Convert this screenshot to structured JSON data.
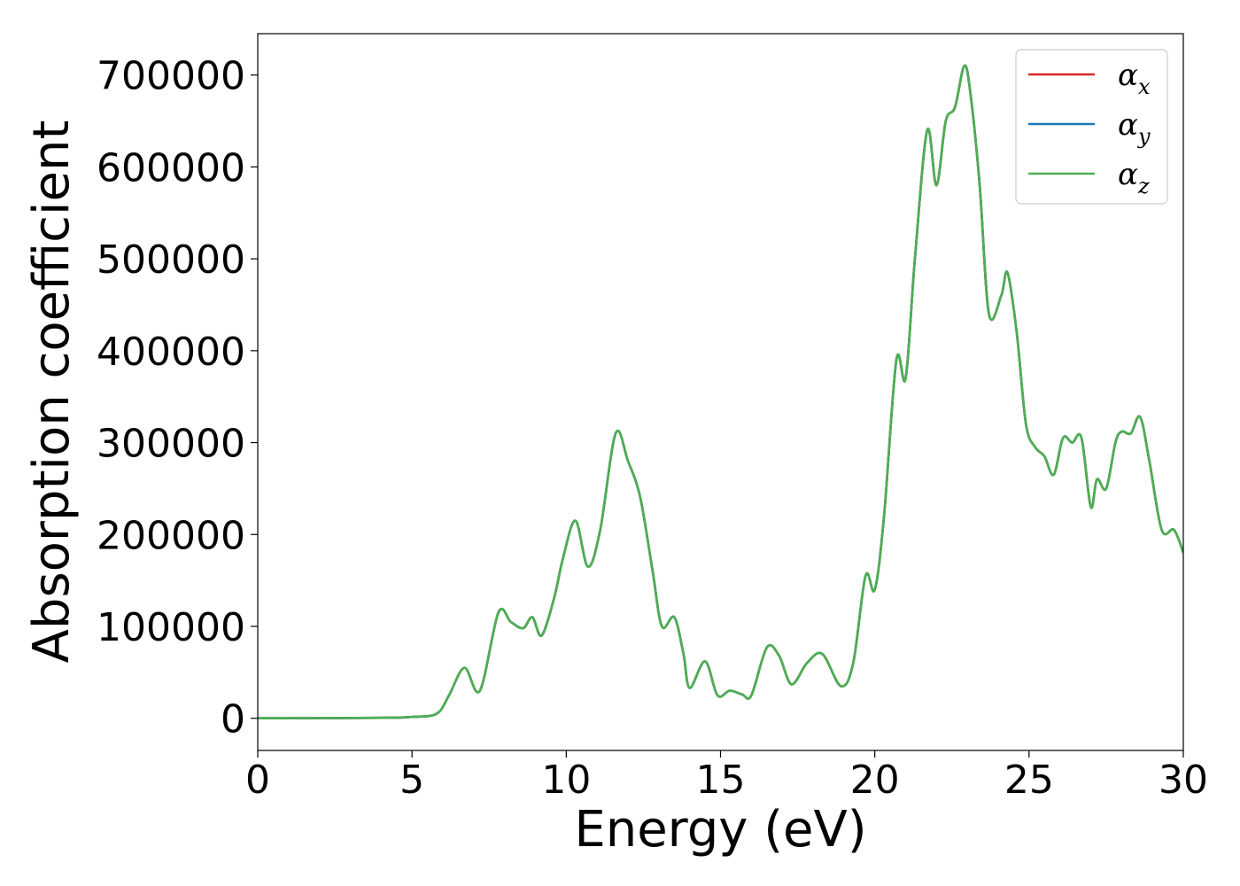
{
  "chart_data": {
    "type": "line",
    "xlabel": "Energy (eV)",
    "ylabel": "Absorption coefficient",
    "xlim": [
      0,
      30
    ],
    "ylim": [
      -35000,
      745000
    ],
    "xticks": [
      0,
      5,
      10,
      15,
      20,
      25,
      30
    ],
    "yticks": [
      0,
      100000,
      200000,
      300000,
      400000,
      500000,
      600000,
      700000
    ],
    "grid": false,
    "legend": {
      "position": "top-right",
      "entries": [
        {
          "symbol": "α",
          "sub": "x",
          "color": "#d62728"
        },
        {
          "symbol": "α",
          "sub": "y",
          "color": "#1f77b4"
        },
        {
          "symbol": "α",
          "sub": "z",
          "color": "#4caf50"
        }
      ]
    },
    "x": [
      0,
      4,
      5,
      5.8,
      6.2,
      6.7,
      7.2,
      7.8,
      8.2,
      8.6,
      8.9,
      9.2,
      9.6,
      9.9,
      10.3,
      10.7,
      11.1,
      11.6,
      12.0,
      12.4,
      12.8,
      13.1,
      13.5,
      13.8,
      14.0,
      14.5,
      14.9,
      15.3,
      15.7,
      16.0,
      16.5,
      16.9,
      17.3,
      17.8,
      18.3,
      18.9,
      19.3,
      19.7,
      20.0,
      20.3,
      20.7,
      21.0,
      21.3,
      21.7,
      22.0,
      22.3,
      22.6,
      22.9,
      23.1,
      23.4,
      23.7,
      24.1,
      24.3,
      24.6,
      24.9,
      25.2,
      25.5,
      25.8,
      26.1,
      26.4,
      26.7,
      27.0,
      27.2,
      27.5,
      27.8,
      28.0,
      28.3,
      28.6,
      28.9,
      29.3,
      29.7,
      30.0
    ],
    "series": [
      {
        "values": [
          0,
          500,
          1500,
          5000,
          25000,
          55000,
          30000,
          115000,
          105000,
          98000,
          110000,
          90000,
          130000,
          175000,
          215000,
          165000,
          205000,
          310000,
          280000,
          240000,
          160000,
          100000,
          110000,
          70000,
          33000,
          62000,
          25000,
          30000,
          26000,
          25000,
          77000,
          68000,
          37000,
          60000,
          70000,
          35000,
          60000,
          155000,
          140000,
          220000,
          390000,
          370000,
          500000,
          640000,
          580000,
          650000,
          665000,
          710000,
          680000,
          580000,
          440000,
          460000,
          485000,
          420000,
          320000,
          295000,
          285000,
          265000,
          305000,
          300000,
          305000,
          230000,
          260000,
          250000,
          300000,
          312000,
          310000,
          328000,
          280000,
          205000,
          205000,
          180000
        ]
      },
      {
        "values": [
          0,
          500,
          1500,
          5000,
          25000,
          55000,
          30000,
          115000,
          105000,
          98000,
          110000,
          90000,
          130000,
          175000,
          215000,
          165000,
          205000,
          310000,
          280000,
          240000,
          160000,
          100000,
          110000,
          70000,
          33000,
          62000,
          25000,
          30000,
          26000,
          25000,
          77000,
          68000,
          37000,
          60000,
          70000,
          35000,
          60000,
          155000,
          140000,
          220000,
          390000,
          370000,
          500000,
          640000,
          580000,
          650000,
          665000,
          710000,
          680000,
          580000,
          440000,
          460000,
          485000,
          420000,
          320000,
          295000,
          285000,
          265000,
          305000,
          300000,
          305000,
          230000,
          260000,
          250000,
          300000,
          312000,
          310000,
          328000,
          280000,
          205000,
          205000,
          180000
        ]
      },
      {
        "values": [
          0,
          500,
          1500,
          5000,
          25000,
          55000,
          30000,
          115000,
          105000,
          98000,
          110000,
          90000,
          130000,
          175000,
          215000,
          165000,
          205000,
          310000,
          280000,
          240000,
          160000,
          100000,
          110000,
          70000,
          33000,
          62000,
          25000,
          30000,
          26000,
          25000,
          77000,
          68000,
          37000,
          60000,
          70000,
          35000,
          60000,
          155000,
          140000,
          220000,
          390000,
          370000,
          500000,
          640000,
          580000,
          650000,
          665000,
          710000,
          680000,
          580000,
          440000,
          460000,
          485000,
          420000,
          320000,
          295000,
          285000,
          265000,
          305000,
          300000,
          305000,
          230000,
          260000,
          250000,
          300000,
          312000,
          310000,
          328000,
          280000,
          205000,
          205000,
          180000
        ]
      }
    ]
  }
}
